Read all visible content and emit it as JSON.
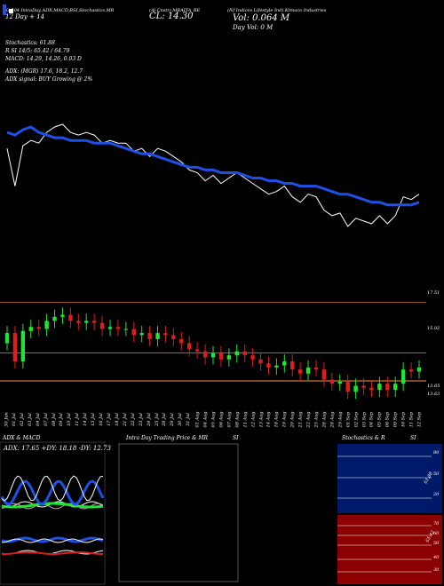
{
  "header": {
    "line1_left": "CG 504 IntraDay ADX,MACD,B",
    "line2_left": "12 Day + 14",
    "line1_mid": "SI,Stochastics,MR",
    "line1_mid2": "(Al Cnstr) MBAITA_BE",
    "close_label": "CL: 14.30",
    "line1_right": "(Nf Indices Lifestyle Ind) Ktmaco Industries",
    "vol_label": "Vol: 0.064 M",
    "day_vol": "Day Vol: 0   M"
  },
  "indicators": {
    "stoch": "Stochastics: 61.88",
    "rsi": "R         SI 14/5: 65.42 / 64.79",
    "macd": "MACD: 14.29, 14.26, 0.03 D",
    "adx": "ADX:                              (MGR) 17.6, 18.2, 12.7",
    "adx_signal": "ADX  signal:                              BUY Growing @ 2%"
  },
  "price_levels": [
    {
      "label": "17.51",
      "value": 17.51
    },
    {
      "label": "15.02",
      "value": 15.02
    },
    {
      "label": "13.65",
      "value": 13.65
    },
    {
      "label": "13.63",
      "value": 13.63
    }
  ],
  "date_labels": [
    "30 Jun",
    "01 Jul",
    "02 Jul",
    "03 Jul",
    "04 Jul",
    "07 Jul",
    "08 Jul",
    "09 Jul",
    "10 Jul",
    "11 Jul",
    "14 Jul",
    "15 Jul",
    "16 Jul",
    "17 Jul",
    "18 Jul",
    "21 Jul",
    "22 Jul",
    "23 Jul",
    "24 Jul",
    "25 Jul",
    "28 Jul",
    "29 Jul",
    "30 Jul",
    "31 Jul",
    "01 Aug",
    "04 Aug",
    "05 Aug",
    "06 Aug",
    "07 Aug",
    "08 Aug",
    "11 Aug",
    "12 Aug",
    "13 Aug",
    "14 Aug",
    "18 Aug",
    "19 Aug",
    "20 Aug",
    "21 Aug",
    "22 Aug",
    "25 Aug",
    "26 Aug",
    "28 Aug",
    "29 Aug",
    "01 Sep",
    "02 Sep",
    "03 Sep",
    "04 Sep",
    "05 Sep",
    "08 Sep",
    "09 Sep",
    "10 Sep",
    "11 Sep",
    "12 Sep"
  ],
  "panels": {
    "adx_title": "ADX  & MACD",
    "adx_readout": "ADX: 17.65  +DY: 18.18  -DY: 12.73",
    "intra_title": "Intra  Day Trading Price  & MR",
    "intra_si": "SI",
    "stoch_title": "Stochastics & R",
    "stoch_si": "SI",
    "stoch_val": "61.88",
    "rsi_val": "65.42"
  },
  "stoch_ticks": [
    "80",
    "50",
    "20"
  ],
  "rsi_ticks": [
    "70",
    "60",
    "50",
    "40",
    "30"
  ],
  "colors": {
    "background": "#000000",
    "ema": "#1e50e6",
    "price_line": "#ffffff",
    "candle_up": "#1ee632",
    "candle_down": "#dc1e1e",
    "level_line": "#a8603c",
    "stoch_bg": "#001a6a",
    "rsi_bg": "#8b0000"
  },
  "chart_data": {
    "type": "line",
    "title": "CL: 14.30",
    "x": [
      "30 Jun",
      "01 Jul",
      "02 Jul",
      "03 Jul",
      "04 Jul",
      "07 Jul",
      "08 Jul",
      "09 Jul",
      "10 Jul",
      "11 Jul",
      "14 Jul",
      "15 Jul",
      "16 Jul",
      "17 Jul",
      "18 Jul",
      "21 Jul",
      "22 Jul",
      "23 Jul",
      "24 Jul",
      "25 Jul",
      "28 Jul",
      "29 Jul",
      "30 Jul",
      "31 Jul",
      "01 Aug",
      "04 Aug",
      "05 Aug",
      "06 Aug",
      "07 Aug",
      "08 Aug",
      "11 Aug",
      "12 Aug",
      "13 Aug",
      "14 Aug",
      "18 Aug",
      "19 Aug",
      "20 Aug",
      "21 Aug",
      "22 Aug",
      "25 Aug",
      "26 Aug",
      "28 Aug",
      "29 Aug",
      "01 Sep",
      "02 Sep",
      "03 Sep",
      "04 Sep",
      "05 Sep",
      "08 Sep",
      "09 Sep",
      "10 Sep",
      "11 Sep",
      "12 Sep"
    ],
    "series": [
      {
        "values": [
          16.0,
          14.6,
          16.1,
          16.3,
          16.2,
          16.6,
          16.8,
          16.9,
          16.6,
          16.5,
          16.6,
          16.5,
          16.2,
          16.3,
          16.2,
          16.2,
          15.9,
          16.0,
          15.7,
          16.0,
          15.9,
          15.7,
          15.5,
          15.2,
          15.1,
          14.8,
          15.0,
          14.7,
          14.9,
          15.1,
          14.9,
          14.7,
          14.5,
          14.3,
          14.4,
          14.6,
          14.2,
          14.0,
          14.3,
          14.2,
          13.7,
          13.5,
          13.6,
          13.1,
          13.4,
          13.3,
          13.2,
          13.5,
          13.2,
          13.5,
          14.2,
          14.1,
          14.3
        ]
      },
      {
        "values": [
          16.6,
          16.5,
          16.7,
          16.8,
          16.6,
          16.5,
          16.4,
          16.4,
          16.3,
          16.3,
          16.3,
          16.2,
          16.2,
          16.2,
          16.1,
          16.0,
          15.9,
          15.8,
          15.8,
          15.7,
          15.6,
          15.5,
          15.4,
          15.3,
          15.3,
          15.2,
          15.2,
          15.1,
          15.1,
          15.1,
          15.0,
          14.9,
          14.9,
          14.8,
          14.8,
          14.7,
          14.7,
          14.6,
          14.6,
          14.6,
          14.5,
          14.4,
          14.3,
          14.3,
          14.2,
          14.1,
          14.0,
          14.0,
          13.9,
          13.9,
          13.9,
          13.9,
          14.0
        ]
      }
    ],
    "ylim": [
      12.5,
      18.5
    ],
    "levels": [
      17.51,
      15.02,
      13.65,
      13.63
    ]
  }
}
